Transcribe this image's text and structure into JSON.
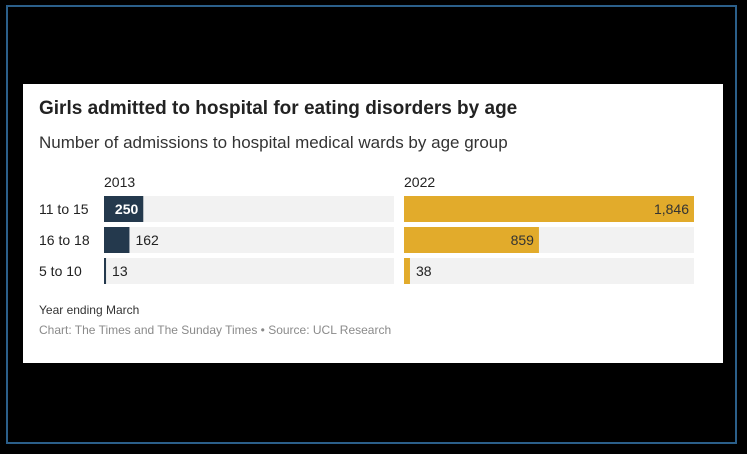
{
  "chart_data": {
    "type": "bar",
    "title": "Girls admitted to hospital for eating disorders by age",
    "subtitle": "Number of admissions to hospital medical wards by age group",
    "categories": [
      "11 to 15",
      "16 to 18",
      "5 to 10"
    ],
    "series": [
      {
        "name": "2013",
        "values": [
          250,
          162,
          13
        ],
        "labels": [
          "250",
          "162",
          "13"
        ],
        "color": "#24394d"
      },
      {
        "name": "2022",
        "values": [
          1846,
          859,
          38
        ],
        "labels": [
          "1,846",
          "859",
          "38"
        ],
        "color": "#e2ab2b"
      }
    ],
    "xlim": [
      0,
      1846
    ],
    "note": "Year ending March",
    "source": "Chart: The Times and The Sunday Times • Source: UCL Research"
  },
  "colors": {
    "track": "#f2f2f2",
    "text": "#222222",
    "inside_label_dark": "#ffffff",
    "inside_label_light": "#333333"
  }
}
